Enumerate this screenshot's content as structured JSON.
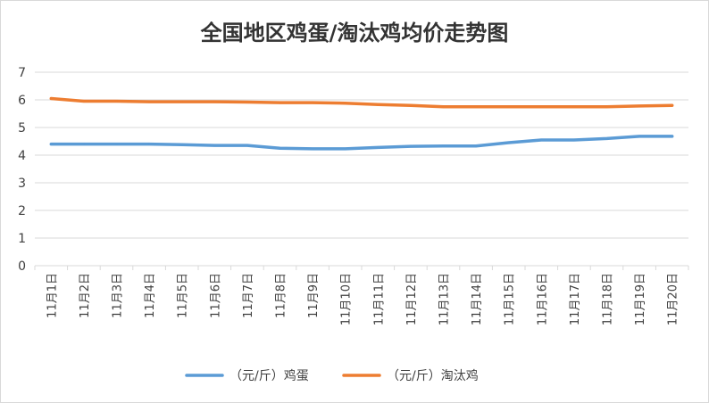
{
  "chart_data": {
    "type": "line",
    "title": "全国地区鸡蛋/淘汰鸡均价走势图",
    "xlabel": "",
    "ylabel": "",
    "ylim": [
      0,
      7
    ],
    "yticks": [
      0,
      1,
      2,
      3,
      4,
      5,
      6,
      7
    ],
    "grid": true,
    "legend_position": "bottom",
    "categories": [
      "11月1日",
      "11月2日",
      "11月3日",
      "11月4日",
      "11月5日",
      "11月6日",
      "11月7日",
      "11月8日",
      "11月9日",
      "11月10日",
      "11月11日",
      "11月12日",
      "11月13日",
      "11月14日",
      "11月15日",
      "11月16日",
      "11月17日",
      "11月18日",
      "11月19日",
      "11月20日"
    ],
    "series": [
      {
        "name": "（元/斤）鸡蛋",
        "color": "#5B9BD5",
        "values": [
          4.4,
          4.4,
          4.4,
          4.4,
          4.38,
          4.35,
          4.35,
          4.25,
          4.23,
          4.23,
          4.28,
          4.32,
          4.33,
          4.33,
          4.45,
          4.55,
          4.55,
          4.6,
          4.68,
          4.68
        ]
      },
      {
        "name": "（元/斤）淘汰鸡",
        "color": "#ED7D31",
        "values": [
          6.05,
          5.95,
          5.95,
          5.93,
          5.93,
          5.93,
          5.92,
          5.9,
          5.9,
          5.88,
          5.83,
          5.8,
          5.75,
          5.75,
          5.75,
          5.75,
          5.75,
          5.75,
          5.78,
          5.8
        ]
      }
    ]
  }
}
